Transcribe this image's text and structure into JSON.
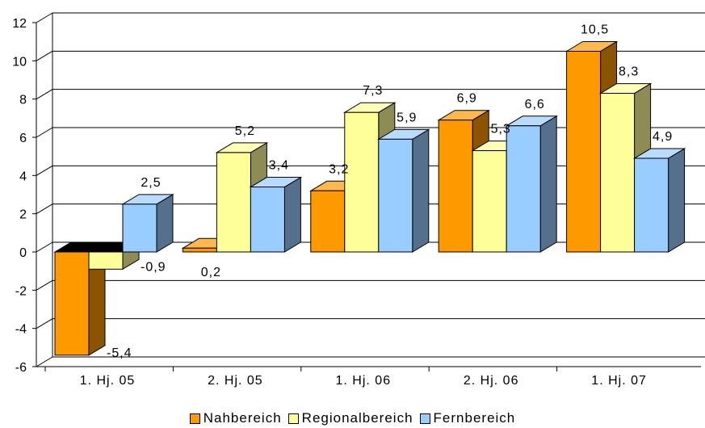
{
  "chart_data": {
    "type": "bar",
    "categories": [
      "1. Hj. 05",
      "2. Hj. 05",
      "1. Hj. 06",
      "2. Hj. 06",
      "1. Hj. 07"
    ],
    "series": [
      {
        "name": "Nahbereich",
        "values": [
          -5.4,
          0.2,
          3.2,
          6.9,
          10.5
        ],
        "labels": [
          "-5,4",
          "0,2",
          "3,2",
          "6,9",
          "10,5"
        ],
        "color": "#ff9900"
      },
      {
        "name": "Regionalbereich",
        "values": [
          -0.9,
          5.2,
          7.3,
          5.3,
          8.3
        ],
        "labels": [
          "-0,9",
          "5,2",
          "7,3",
          "5,3",
          "8,3"
        ],
        "color": "#ffff99"
      },
      {
        "name": "Fernbereich",
        "values": [
          2.5,
          3.4,
          5.9,
          6.6,
          4.9
        ],
        "labels": [
          "2,5",
          "3,4",
          "5,9",
          "6,6",
          "4,9"
        ],
        "color": "#99ccff"
      }
    ],
    "yticks": [
      "-6",
      "-4",
      "-2",
      "0",
      "2",
      "4",
      "6",
      "8",
      "10",
      "12"
    ],
    "ylim": [
      -6,
      12
    ],
    "grid": true,
    "style": "3d-clustered-column",
    "legend_position": "bottom"
  }
}
